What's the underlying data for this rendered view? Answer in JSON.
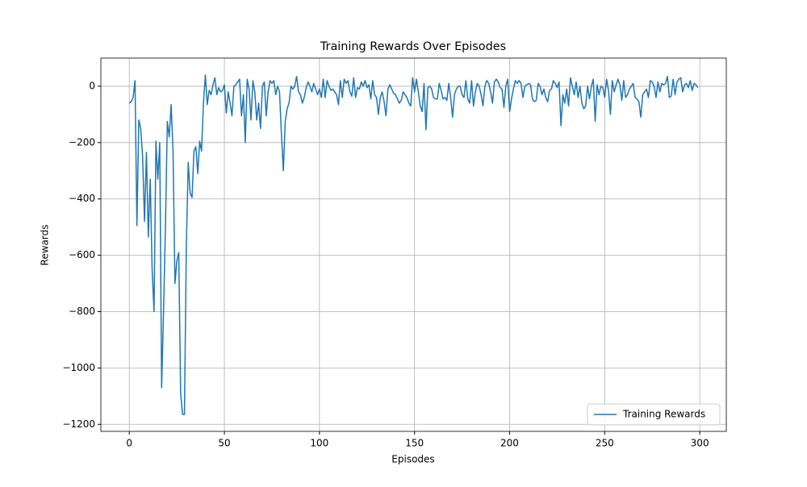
{
  "chart_data": {
    "type": "line",
    "title": "Training Rewards Over Episodes",
    "xlabel": "Episodes",
    "ylabel": "Rewards",
    "x": [
      0,
      1,
      2,
      3,
      4,
      5,
      6,
      7,
      8,
      9,
      10,
      11,
      12,
      13,
      14,
      15,
      16,
      17,
      18,
      19,
      20,
      21,
      22,
      23,
      24,
      25,
      26,
      27,
      28,
      29,
      30,
      31,
      32,
      33,
      34,
      35,
      36,
      37,
      38,
      39,
      40,
      41,
      42,
      43,
      44,
      45,
      46,
      47,
      48,
      49,
      50,
      51,
      52,
      53,
      54,
      55,
      56,
      57,
      58,
      59,
      60,
      61,
      62,
      63,
      64,
      65,
      66,
      67,
      68,
      69,
      70,
      71,
      72,
      73,
      74,
      75,
      76,
      77,
      78,
      79,
      80,
      81,
      82,
      83,
      84,
      85,
      86,
      87,
      88,
      89,
      90,
      91,
      92,
      93,
      94,
      95,
      96,
      97,
      98,
      99,
      100,
      101,
      102,
      103,
      104,
      105,
      106,
      107,
      108,
      109,
      110,
      111,
      112,
      113,
      114,
      115,
      116,
      117,
      118,
      119,
      120,
      121,
      122,
      123,
      124,
      125,
      126,
      127,
      128,
      129,
      130,
      131,
      132,
      133,
      134,
      135,
      136,
      137,
      138,
      139,
      140,
      141,
      142,
      143,
      144,
      145,
      146,
      147,
      148,
      149,
      150,
      151,
      152,
      153,
      154,
      155,
      156,
      157,
      158,
      159,
      160,
      161,
      162,
      163,
      164,
      165,
      166,
      167,
      168,
      169,
      170,
      171,
      172,
      173,
      174,
      175,
      176,
      177,
      178,
      179,
      180,
      181,
      182,
      183,
      184,
      185,
      186,
      187,
      188,
      189,
      190,
      191,
      192,
      193,
      194,
      195,
      196,
      197,
      198,
      199,
      200,
      201,
      202,
      203,
      204,
      205,
      206,
      207,
      208,
      209,
      210,
      211,
      212,
      213,
      214,
      215,
      216,
      217,
      218,
      219,
      220,
      221,
      222,
      223,
      224,
      225,
      226,
      227,
      228,
      229,
      230,
      231,
      232,
      233,
      234,
      235,
      236,
      237,
      238,
      239,
      240,
      241,
      242,
      243,
      244,
      245,
      246,
      247,
      248,
      249,
      250,
      251,
      252,
      253,
      254,
      255,
      256,
      257,
      258,
      259,
      260,
      261,
      262,
      263,
      264,
      265,
      266,
      267,
      268,
      269,
      270,
      271,
      272,
      273,
      274,
      275,
      276,
      277,
      278,
      279,
      280,
      281,
      282,
      283,
      284,
      285,
      286,
      287,
      288,
      289,
      290,
      291,
      292,
      293,
      294,
      295,
      296,
      297,
      298,
      299
    ],
    "series": [
      {
        "name": "Training Rewards",
        "color": "#1f77b4",
        "values": [
          -60,
          -55,
          -40,
          20,
          -495,
          -120,
          -150,
          -250,
          -480,
          -235,
          -535,
          -330,
          -650,
          -800,
          -195,
          -330,
          -200,
          -1070,
          -800,
          -500,
          -125,
          -180,
          -65,
          -230,
          -700,
          -620,
          -590,
          -1090,
          -1165,
          -1165,
          -560,
          -270,
          -380,
          -395,
          -230,
          -215,
          -310,
          -195,
          -230,
          -60,
          40,
          -65,
          -15,
          -30,
          5,
          30,
          -30,
          -5,
          -20,
          -15,
          5,
          -95,
          -20,
          -60,
          -105,
          0,
          5,
          15,
          25,
          -105,
          -30,
          -200,
          25,
          -10,
          -120,
          20,
          -20,
          -120,
          -60,
          -150,
          0,
          15,
          -105,
          -20,
          20,
          10,
          20,
          -30,
          0,
          -20,
          -170,
          -300,
          -125,
          -80,
          -60,
          0,
          -10,
          0,
          35,
          -20,
          -30,
          -60,
          -40,
          -5,
          15,
          0,
          -20,
          10,
          -10,
          -30,
          -10,
          -40,
          25,
          -40,
          20,
          0,
          -15,
          -10,
          -20,
          -30,
          -65,
          20,
          -40,
          25,
          10,
          20,
          -20,
          -35,
          30,
          -40,
          -5,
          -10,
          15,
          0,
          20,
          -5,
          5,
          -45,
          20,
          -30,
          -40,
          -100,
          -40,
          -20,
          -55,
          -105,
          -10,
          5,
          -10,
          -25,
          -30,
          -45,
          -60,
          -50,
          -20,
          -30,
          -40,
          -60,
          -70,
          30,
          -20,
          25,
          -20,
          -70,
          -90,
          10,
          -155,
          -5,
          0,
          -10,
          -40,
          -45,
          -45,
          10,
          -15,
          -45,
          -40,
          -50,
          10,
          -40,
          -110,
          -30,
          -10,
          0,
          0,
          -30,
          -40,
          20,
          -45,
          -60,
          20,
          -70,
          -20,
          10,
          0,
          -30,
          -70,
          0,
          20,
          10,
          -20,
          -60,
          15,
          25,
          15,
          -5,
          -10,
          -75,
          0,
          25,
          -90,
          -45,
          -10,
          20,
          10,
          20,
          10,
          -40,
          0,
          5,
          10,
          5,
          -45,
          -55,
          -50,
          10,
          0,
          -30,
          -10,
          -40,
          -55,
          -15,
          -10,
          20,
          10,
          -5,
          15,
          -140,
          -30,
          -60,
          -10,
          -70,
          30,
          0,
          -30,
          15,
          -40,
          0,
          -60,
          -80,
          -70,
          0,
          -45,
          0,
          25,
          -125,
          5,
          -30,
          0,
          -5,
          -40,
          25,
          -15,
          -100,
          20,
          -20,
          5,
          25,
          5,
          -50,
          20,
          -40,
          -30,
          -10,
          0,
          10,
          -40,
          -45,
          -55,
          -110,
          -30,
          -20,
          -10,
          -40,
          20,
          15,
          0,
          -40,
          15,
          -20,
          10,
          5,
          10,
          35,
          -40,
          -35,
          25,
          -30,
          15,
          25,
          30,
          -20,
          5,
          10,
          -5,
          20,
          -15,
          10,
          5,
          -5
        ]
      }
    ],
    "xlim": [
      -14.95,
      313.95
    ],
    "ylim": [
      -1225,
      100
    ],
    "xticks": [
      0,
      50,
      100,
      150,
      200,
      250,
      300
    ],
    "yticks": [
      {
        "value": -1200,
        "label": "−1200"
      },
      {
        "value": -1000,
        "label": "−1000"
      },
      {
        "value": -800,
        "label": "−800"
      },
      {
        "value": -600,
        "label": "−600"
      },
      {
        "value": -400,
        "label": "−400"
      },
      {
        "value": -200,
        "label": "−200"
      },
      0
    ],
    "grid": true,
    "legend": "lower right"
  }
}
